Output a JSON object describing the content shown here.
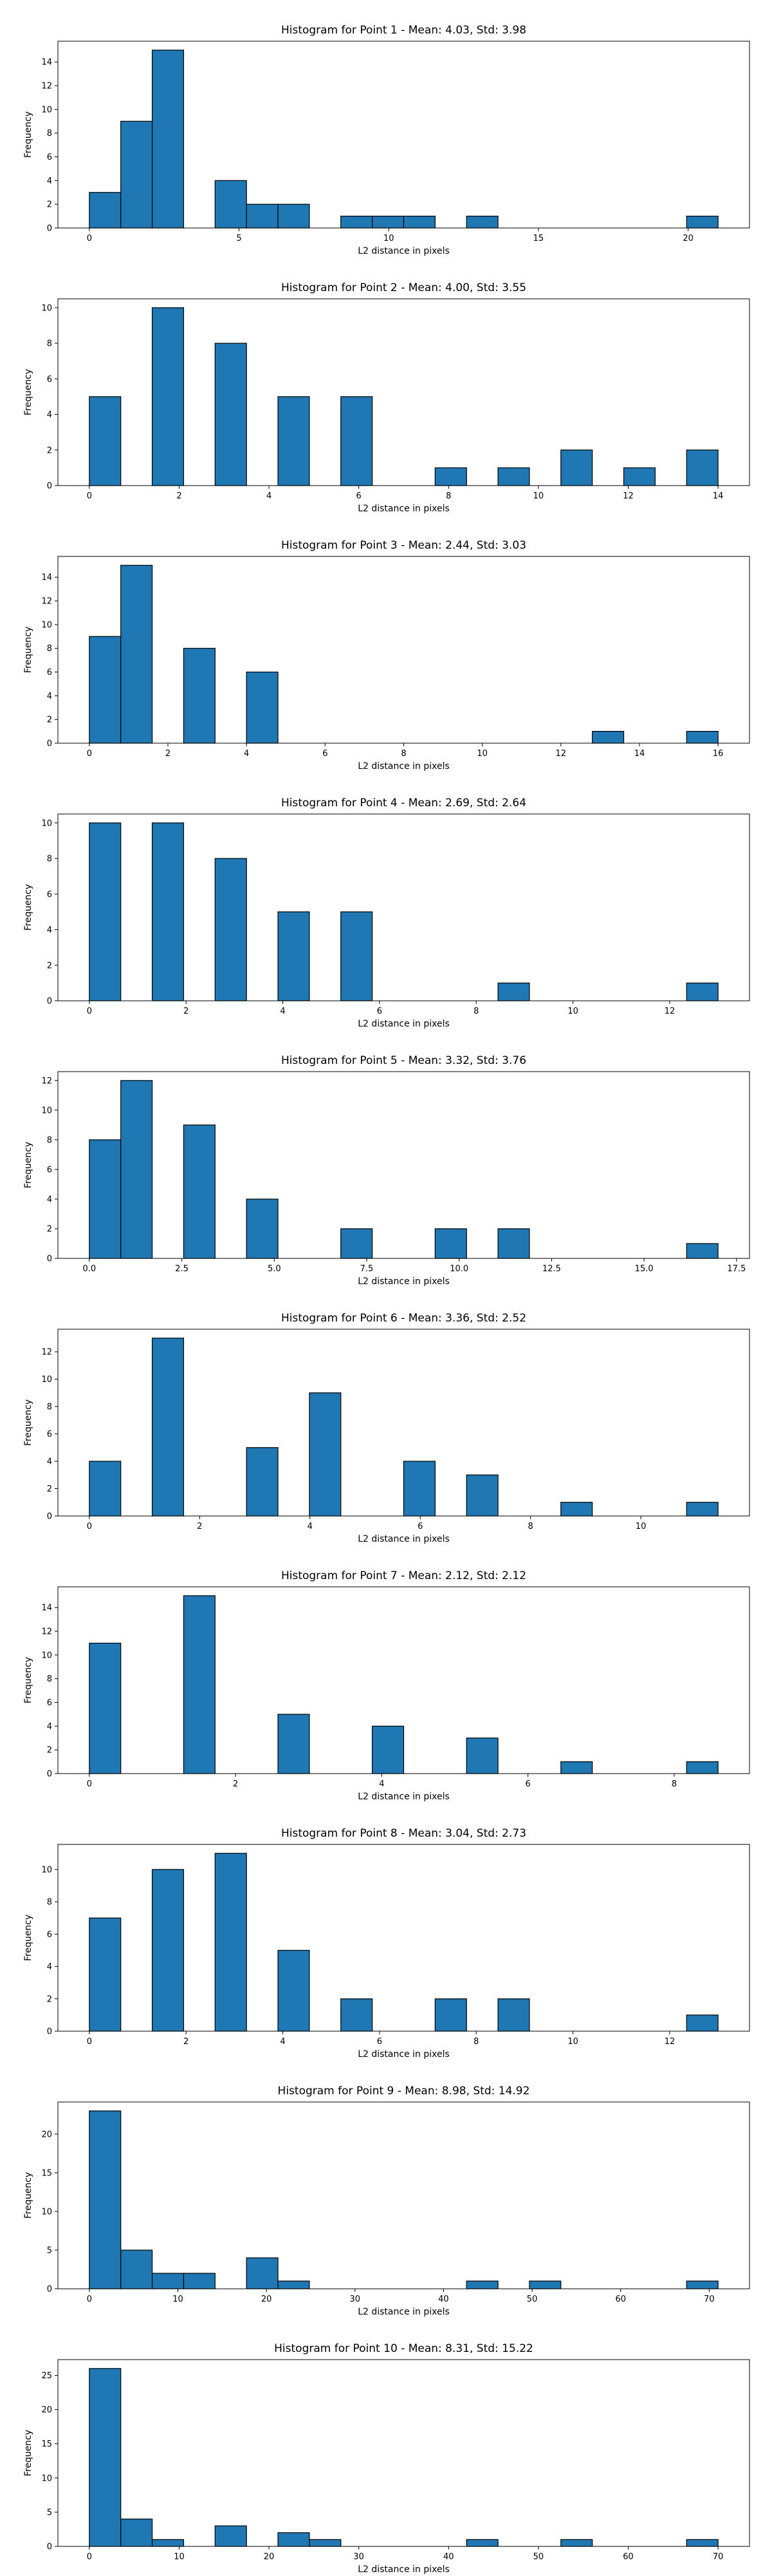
{
  "style": {
    "bar_fill": "#1f77b4",
    "bar_edge": "#000000",
    "axes_color": "#000000",
    "background": "#ffffff"
  },
  "chart_data": [
    {
      "type": "bar",
      "title": "Histogram for Point 1 - Mean: 4.03, Std: 3.98",
      "xlabel": "L2 distance in pixels",
      "ylabel": "Frequency",
      "xlim": [
        -1.05,
        22.05
      ],
      "ylim": [
        0,
        15.75
      ],
      "xticks": [
        0,
        5,
        10,
        15,
        20
      ],
      "yticks": [
        0,
        2,
        4,
        6,
        8,
        10,
        12,
        14
      ],
      "grid": false,
      "bin_edges": [
        0,
        1.05,
        2.1,
        3.15,
        4.2,
        5.25,
        6.3,
        7.35,
        8.4,
        9.45,
        10.5,
        11.55,
        12.6,
        13.65,
        14.7,
        15.75,
        16.8,
        17.85,
        18.9,
        19.95,
        21.0
      ],
      "values": [
        3,
        9,
        15,
        0,
        4,
        2,
        2,
        0,
        1,
        1,
        1,
        0,
        1,
        0,
        0,
        0,
        0,
        0,
        0,
        1
      ]
    },
    {
      "type": "bar",
      "title": "Histogram for Point 2 - Mean: 4.00, Std: 3.55",
      "xlabel": "L2 distance in pixels",
      "ylabel": "Frequency",
      "xlim": [
        -0.7,
        14.7
      ],
      "ylim": [
        0,
        10.5
      ],
      "xticks": [
        0,
        2,
        4,
        6,
        8,
        10,
        12,
        14
      ],
      "yticks": [
        0,
        2,
        4,
        6,
        8,
        10
      ],
      "grid": false,
      "bin_edges": [
        0,
        0.7,
        1.4,
        2.1,
        2.8,
        3.5,
        4.2,
        4.9,
        5.6,
        6.3,
        7.0,
        7.7,
        8.4,
        9.1,
        9.8,
        10.5,
        11.2,
        11.9,
        12.6,
        13.3,
        14.0
      ],
      "values": [
        5,
        0,
        10,
        0,
        8,
        0,
        5,
        0,
        5,
        0,
        0,
        1,
        0,
        1,
        0,
        2,
        0,
        1,
        0,
        2
      ]
    },
    {
      "type": "bar",
      "title": "Histogram for Point 3 - Mean: 2.44, Std: 3.03",
      "xlabel": "L2 distance in pixels",
      "ylabel": "Frequency",
      "xlim": [
        -0.8,
        16.8
      ],
      "ylim": [
        0,
        15.75
      ],
      "xticks": [
        0,
        2,
        4,
        6,
        8,
        10,
        12,
        14,
        16
      ],
      "yticks": [
        0,
        2,
        4,
        6,
        8,
        10,
        12,
        14
      ],
      "grid": false,
      "bin_edges": [
        0,
        0.8,
        1.6,
        2.4,
        3.2,
        4.0,
        4.8,
        5.6,
        6.4,
        7.2,
        8.0,
        8.8,
        9.6,
        10.4,
        11.2,
        12.0,
        12.8,
        13.6,
        14.4,
        15.2,
        16.0
      ],
      "values": [
        9,
        15,
        0,
        8,
        0,
        6,
        0,
        0,
        0,
        0,
        0,
        0,
        0,
        0,
        0,
        0,
        1,
        0,
        0,
        1
      ]
    },
    {
      "type": "bar",
      "title": "Histogram for Point 4 - Mean: 2.69, Std: 2.64",
      "xlabel": "L2 distance in pixels",
      "ylabel": "Frequency",
      "xlim": [
        -0.65,
        13.65
      ],
      "ylim": [
        0,
        10.5
      ],
      "xticks": [
        0,
        2,
        4,
        6,
        8,
        10,
        12
      ],
      "yticks": [
        0,
        2,
        4,
        6,
        8,
        10
      ],
      "grid": false,
      "bin_edges": [
        0,
        0.65,
        1.3,
        1.95,
        2.6,
        3.25,
        3.9,
        4.55,
        5.2,
        5.85,
        6.5,
        7.15,
        7.8,
        8.45,
        9.1,
        9.75,
        10.4,
        11.05,
        11.7,
        12.35,
        13.0
      ],
      "values": [
        10,
        0,
        10,
        0,
        8,
        0,
        5,
        0,
        5,
        0,
        0,
        0,
        0,
        1,
        0,
        0,
        0,
        0,
        0,
        1
      ]
    },
    {
      "type": "bar",
      "title": "Histogram for Point 5 - Mean: 3.32, Std: 3.76",
      "xlabel": "L2 distance in pixels",
      "ylabel": "Frequency",
      "xlim": [
        -0.85,
        17.85
      ],
      "ylim": [
        0,
        12.6
      ],
      "xticks": [
        0.0,
        2.5,
        5.0,
        7.5,
        10.0,
        12.5,
        15.0,
        17.5
      ],
      "ytick_labels_decimals": 0,
      "xtick_labels": [
        "0.0",
        "2.5",
        "5.0",
        "7.5",
        "10.0",
        "12.5",
        "15.0",
        "17.5"
      ],
      "yticks": [
        0,
        2,
        4,
        6,
        8,
        10,
        12
      ],
      "grid": false,
      "bin_edges": [
        0,
        0.85,
        1.7,
        2.55,
        3.4,
        4.25,
        5.1,
        5.95,
        6.8,
        7.65,
        8.5,
        9.35,
        10.2,
        11.05,
        11.9,
        12.75,
        13.6,
        14.45,
        15.3,
        16.15,
        17.0
      ],
      "values": [
        8,
        12,
        0,
        9,
        0,
        4,
        0,
        0,
        2,
        0,
        0,
        2,
        0,
        2,
        0,
        0,
        0,
        0,
        0,
        1
      ]
    },
    {
      "type": "bar",
      "title": "Histogram for Point 6 - Mean: 3.36, Std: 2.52",
      "xlabel": "L2 distance in pixels",
      "ylabel": "Frequency",
      "xlim": [
        -0.57,
        11.97
      ],
      "ylim": [
        0,
        13.65
      ],
      "xticks": [
        0,
        2,
        4,
        6,
        8,
        10
      ],
      "yticks": [
        0,
        2,
        4,
        6,
        8,
        10,
        12
      ],
      "grid": false,
      "bin_edges": [
        0,
        0.57,
        1.14,
        1.71,
        2.28,
        2.85,
        3.42,
        3.99,
        4.56,
        5.13,
        5.7,
        6.27,
        6.84,
        7.41,
        7.98,
        8.55,
        9.12,
        9.69,
        10.26,
        10.83,
        11.4
      ],
      "values": [
        4,
        0,
        13,
        0,
        0,
        5,
        0,
        9,
        0,
        0,
        4,
        0,
        3,
        0,
        0,
        1,
        0,
        0,
        0,
        1
      ]
    },
    {
      "type": "bar",
      "title": "Histogram for Point 7 - Mean: 2.12, Std: 2.12",
      "xlabel": "L2 distance in pixels",
      "ylabel": "Frequency",
      "xlim": [
        -0.43,
        9.03
      ],
      "ylim": [
        0,
        15.75
      ],
      "xticks": [
        0,
        2,
        4,
        6,
        8
      ],
      "yticks": [
        0,
        2,
        4,
        6,
        8,
        10,
        12,
        14
      ],
      "grid": false,
      "bin_edges": [
        0,
        0.43,
        0.86,
        1.29,
        1.72,
        2.15,
        2.58,
        3.01,
        3.44,
        3.87,
        4.3,
        4.73,
        5.16,
        5.59,
        6.02,
        6.45,
        6.88,
        7.31,
        7.74,
        8.17,
        8.6
      ],
      "values": [
        11,
        0,
        0,
        15,
        0,
        0,
        5,
        0,
        0,
        4,
        0,
        0,
        3,
        0,
        0,
        1,
        0,
        0,
        0,
        1
      ]
    },
    {
      "type": "bar",
      "title": "Histogram for Point 8 - Mean: 3.04, Std: 2.73",
      "xlabel": "L2 distance in pixels",
      "ylabel": "Frequency",
      "xlim": [
        -0.65,
        13.65
      ],
      "ylim": [
        0,
        11.55
      ],
      "xticks": [
        0,
        2,
        4,
        6,
        8,
        10,
        12
      ],
      "yticks": [
        0,
        2,
        4,
        6,
        8,
        10
      ],
      "grid": false,
      "bin_edges": [
        0,
        0.65,
        1.3,
        1.95,
        2.6,
        3.25,
        3.9,
        4.55,
        5.2,
        5.85,
        6.5,
        7.15,
        7.8,
        8.45,
        9.1,
        9.75,
        10.4,
        11.05,
        11.7,
        12.35,
        13.0
      ],
      "values": [
        7,
        0,
        10,
        0,
        11,
        0,
        5,
        0,
        2,
        0,
        0,
        2,
        0,
        2,
        0,
        0,
        0,
        0,
        0,
        1
      ]
    },
    {
      "type": "bar",
      "title": "Histogram for Point 9 - Mean: 8.98, Std: 14.92",
      "xlabel": "L2 distance in pixels",
      "ylabel": "Frequency",
      "xlim": [
        -3.55,
        74.55
      ],
      "ylim": [
        0,
        24.15
      ],
      "xticks": [
        0,
        10,
        20,
        30,
        40,
        50,
        60,
        70
      ],
      "yticks": [
        0,
        5,
        10,
        15,
        20
      ],
      "grid": false,
      "bin_edges": [
        0,
        3.55,
        7.1,
        10.65,
        14.2,
        17.75,
        21.3,
        24.85,
        28.4,
        31.95,
        35.5,
        39.05,
        42.6,
        46.15,
        49.7,
        53.25,
        56.8,
        60.35,
        63.9,
        67.45,
        71.0
      ],
      "values": [
        23,
        5,
        2,
        2,
        0,
        4,
        1,
        0,
        0,
        0,
        0,
        0,
        1,
        0,
        1,
        0,
        0,
        0,
        0,
        1
      ]
    },
    {
      "type": "bar",
      "title": "Histogram for Point 10 - Mean: 8.31, Std: 15.22",
      "xlabel": "L2 distance in pixels",
      "ylabel": "Frequency",
      "xlim": [
        -3.5,
        73.5
      ],
      "ylim": [
        0,
        27.3
      ],
      "xticks": [
        0,
        10,
        20,
        30,
        40,
        50,
        60,
        70
      ],
      "yticks": [
        0,
        5,
        10,
        15,
        20,
        25
      ],
      "grid": false,
      "bin_edges": [
        0,
        3.5,
        7.0,
        10.5,
        14.0,
        17.5,
        21.0,
        24.5,
        28.0,
        31.5,
        35.0,
        38.5,
        42.0,
        45.5,
        49.0,
        52.5,
        56.0,
        59.5,
        63.0,
        66.5,
        70.0
      ],
      "values": [
        26,
        4,
        1,
        0,
        3,
        0,
        2,
        1,
        0,
        0,
        0,
        0,
        1,
        0,
        0,
        1,
        0,
        0,
        0,
        1
      ]
    }
  ]
}
